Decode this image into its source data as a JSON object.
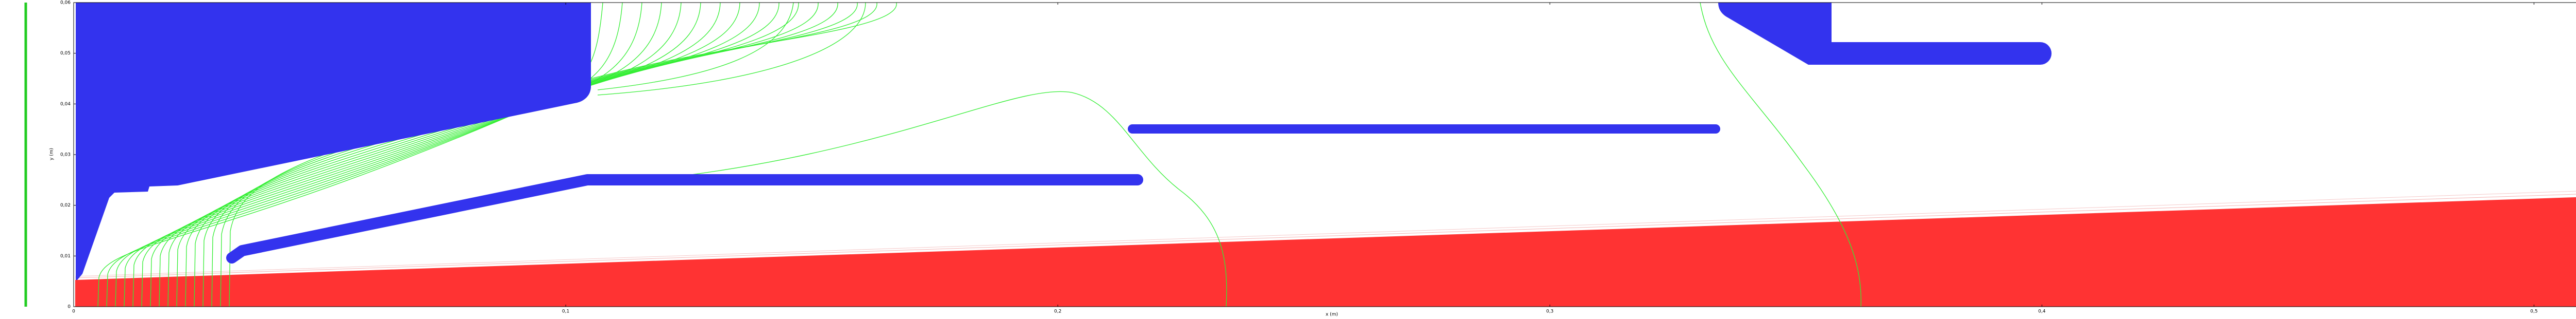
{
  "chart_data": {
    "type": "field-map",
    "xlabel": "x (m)",
    "ylabel": "y (m)",
    "xlim": [
      0,
      0.521
    ],
    "ylim": [
      0,
      0.06
    ],
    "xticks": [
      0,
      {
        "value": 0.1,
        "label": "0,1"
      },
      {
        "value": 0.2,
        "label": "0,2"
      },
      {
        "value": 0.3,
        "label": "0,3"
      },
      {
        "value": 0.4,
        "label": "0,4"
      },
      {
        "value": 0.5,
        "label": "0,5"
      }
    ],
    "yticks": [
      0,
      {
        "value": 0.01,
        "label": "0,01"
      },
      {
        "value": 0.02,
        "label": "0,02"
      },
      {
        "value": 0.03,
        "label": "0,03"
      },
      {
        "value": 0.04,
        "label": "0,04"
      },
      {
        "value": 0.05,
        "label": "0,05"
      },
      {
        "value": 0.06,
        "label": "0,06"
      }
    ]
  }
}
